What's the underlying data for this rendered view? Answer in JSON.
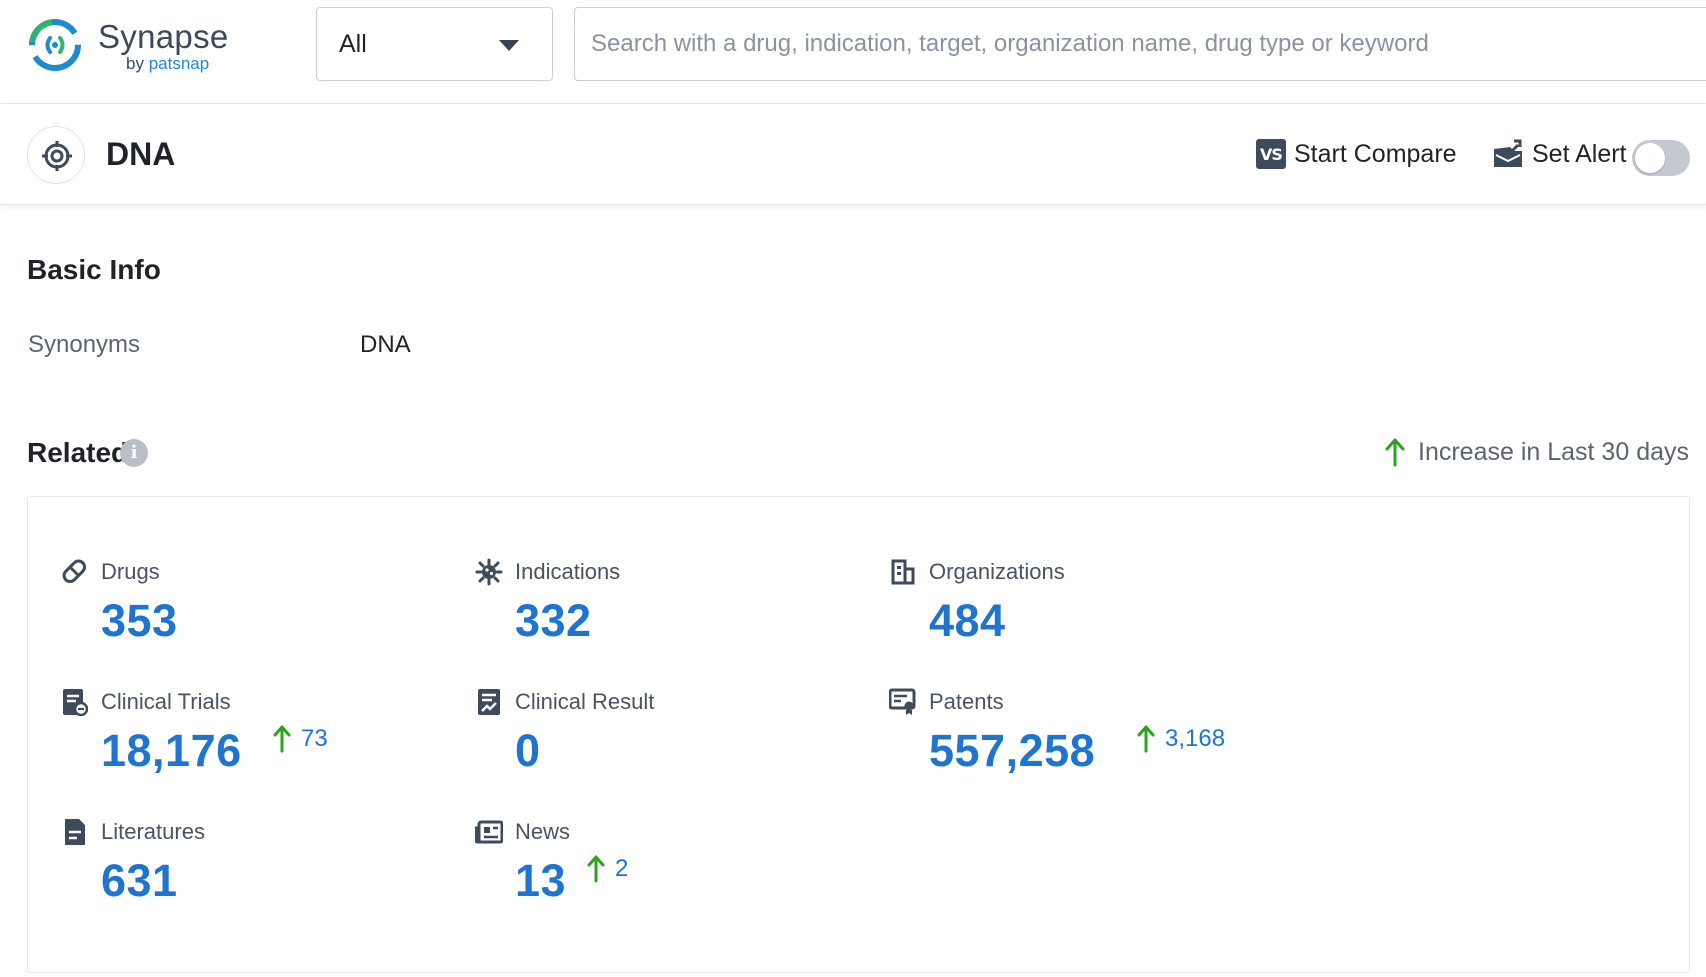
{
  "header": {
    "brand_name": "Synapse",
    "brand_by": "by",
    "brand_company": "patsnap",
    "scope_value": "All",
    "search_placeholder": "Search with a drug, indication, target, organization name, drug type or keyword"
  },
  "entity": {
    "title": "DNA",
    "vs_badge": "VS",
    "compare_label": "Start Compare",
    "alert_label": "Set Alert",
    "alert_enabled": false
  },
  "basic_info": {
    "title": "Basic Info",
    "synonyms_label": "Synonyms",
    "synonyms_value": "DNA"
  },
  "related": {
    "title": "Related",
    "info_glyph": "i",
    "legend_label": "Increase in Last 30 days",
    "colors": {
      "value": "#1f74cf",
      "increase_arrow": "#2ea121",
      "icon": "#3d4b5c"
    },
    "stats": [
      {
        "label": "Drugs",
        "value": "353",
        "increase": "",
        "icon": "pill-icon"
      },
      {
        "label": "Indications",
        "value": "332",
        "increase": "",
        "icon": "virus-icon"
      },
      {
        "label": "Organizations",
        "value": "484",
        "increase": "",
        "icon": "building-icon"
      },
      {
        "label": "Clinical Trials",
        "value": "18,176",
        "increase": "73",
        "icon": "clipboard-icon"
      },
      {
        "label": "Clinical Result",
        "value": "0",
        "increase": "",
        "icon": "chart-document-icon"
      },
      {
        "label": "Patents",
        "value": "557,258",
        "increase": "3,168",
        "icon": "certificate-icon"
      },
      {
        "label": "Literatures",
        "value": "631",
        "increase": "",
        "icon": "document-icon"
      },
      {
        "label": "News",
        "value": "13",
        "increase": "2",
        "icon": "newspaper-icon"
      }
    ]
  }
}
